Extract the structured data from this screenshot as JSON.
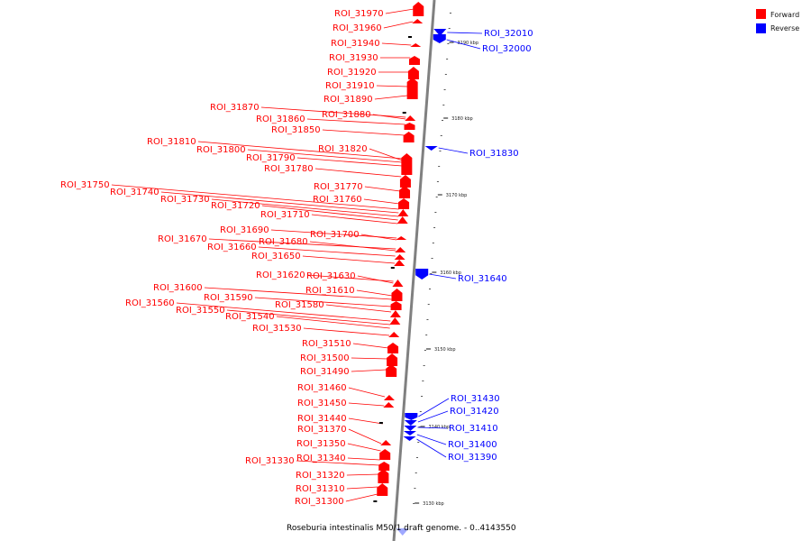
{
  "caption": "Roseburia intestinalis M50/1 draft genome. - 0..4143550",
  "colors": {
    "forward": "#ff0000",
    "reverse": "#0000ff",
    "axis": "#808080"
  },
  "legend": {
    "forward": "Forward",
    "reverse": "Reverse"
  },
  "ticks": [
    "3190 kbp",
    "3180 kbp",
    "3170 kbp",
    "3160 kbp",
    "3150 kbp",
    "3140 kbp",
    "3130 kbp"
  ],
  "forward_labels": [
    "ROI_31970",
    "ROI_31960",
    "ROI_31940",
    "ROI_31930",
    "ROI_31920",
    "ROI_31910",
    "ROI_31890",
    "ROI_31870",
    "ROI_31880",
    "ROI_31860",
    "ROI_31850",
    "ROI_31810",
    "ROI_31820",
    "ROI_31800",
    "ROI_31790",
    "ROI_31780",
    "ROI_31750",
    "ROI_31740",
    "ROI_31770",
    "ROI_31730",
    "ROI_31760",
    "ROI_31720",
    "ROI_31710",
    "ROI_31690",
    "ROI_31700",
    "ROI_31670",
    "ROI_31680",
    "ROI_31660",
    "ROI_31650",
    "ROI_31620",
    "ROI_31630",
    "ROI_31600",
    "ROI_31610",
    "ROI_31590",
    "ROI_31560",
    "ROI_31580",
    "ROI_31550",
    "ROI_31540",
    "ROI_31530",
    "ROI_31510",
    "ROI_31500",
    "ROI_31490",
    "ROI_31460",
    "ROI_31450",
    "ROI_31440",
    "ROI_31370",
    "ROI_31350",
    "ROI_31340",
    "ROI_31330",
    "ROI_31320",
    "ROI_31310",
    "ROI_31300"
  ],
  "reverse_labels": [
    "ROI_32010",
    "ROI_32000",
    "ROI_31830",
    "ROI_31640",
    "ROI_31430",
    "ROI_31420",
    "ROI_31410",
    "ROI_31400",
    "ROI_31390"
  ]
}
